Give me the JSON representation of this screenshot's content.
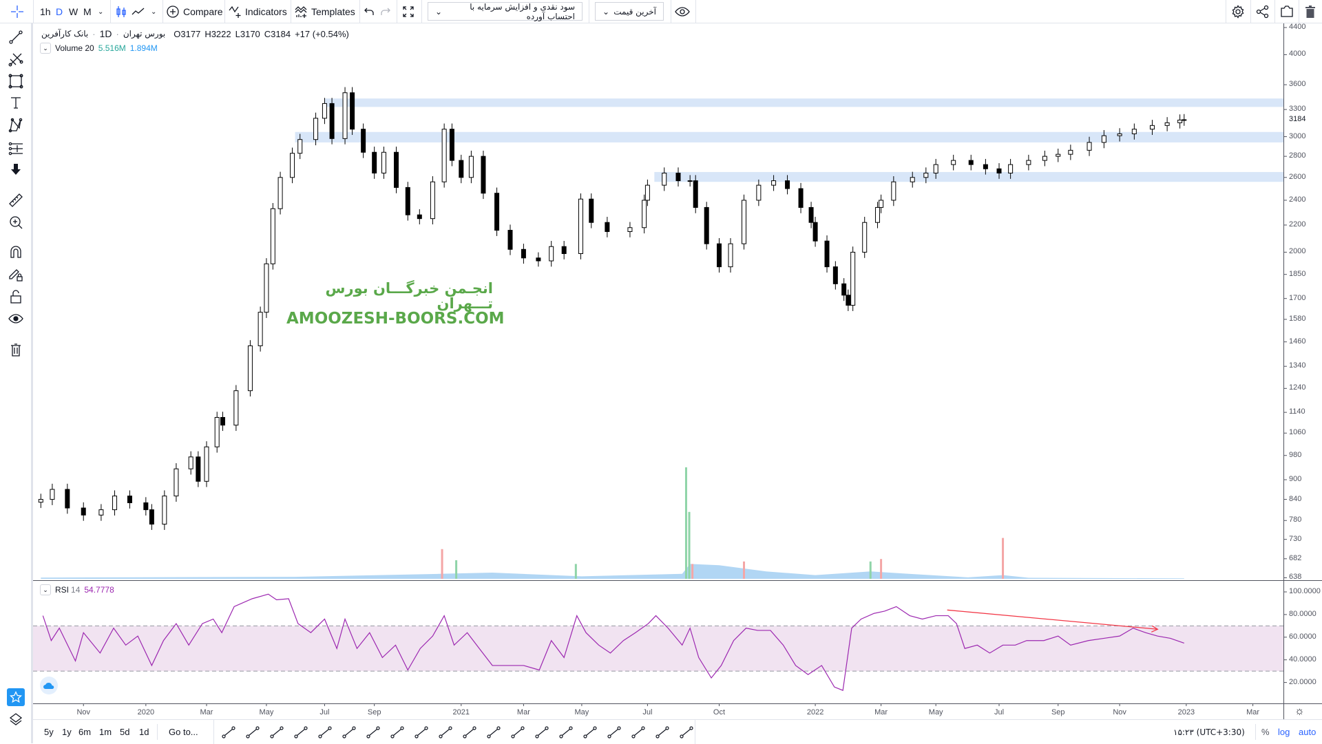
{
  "toolbar": {
    "intervals": [
      {
        "label": "1h",
        "active": false
      },
      {
        "label": "D",
        "active": true
      },
      {
        "label": "W",
        "active": false
      },
      {
        "label": "M",
        "active": false
      }
    ],
    "compare_label": "Compare",
    "indicators_label": "Indicators",
    "templates_label": "Templates",
    "adjustment_dropdown": "سود نقدی و افزایش سرمایه با احتساب آورده",
    "price_type_dropdown": "آخرین قیمت",
    "icons": [
      "crosshair-icon",
      "candles-icon",
      "line-chart-icon",
      "compare-icon",
      "indicators-icon",
      "templates-icon",
      "undo-icon",
      "redo-icon",
      "fullscreen-icon",
      "eye-icon",
      "gear-icon",
      "share-icon",
      "camera-icon",
      "trash-icon"
    ]
  },
  "left_tools": [
    "crosshair",
    "trend-line",
    "pitchfork",
    "rectangle",
    "text",
    "xabcd-pattern",
    "fib-tools",
    "arrow-down",
    "ruler",
    "zoom-in",
    "magnet",
    "lock-drawing",
    "unlock",
    "eye",
    "trash",
    "watchlist-star",
    "layers"
  ],
  "legend": {
    "symbol": "بانک کارآفرین",
    "interval": "1D",
    "exchange": "بورس تهران",
    "open": "O3177",
    "high": "H3222",
    "low": "L3170",
    "close": "C3184",
    "change": "+17 (+0.54%)",
    "volume_label": "Volume 20",
    "volume_value": "5.516M",
    "volume_ma": "1.894M",
    "rsi_label": "RSI",
    "rsi_period": "14",
    "rsi_value": "54.7778"
  },
  "watermark": {
    "line1": "انجـمن خبرگـــان بورس تـــهران",
    "line2": "AMOOZESH-BOORS.COM"
  },
  "colors": {
    "accent": "#2962ff",
    "up_volume": "#8fd4a8",
    "down_volume": "#f4a6a6",
    "volume_ma": "#90c4f0",
    "rsi_line": "#9c27b0",
    "rsi_band": "#f1e3f1",
    "zone": "#d8e6f8",
    "trend": "#f23645",
    "watermark": "#5aa84a"
  },
  "chart_data": [
    {
      "type": "candlestick",
      "scale": "log",
      "ylim": [
        638,
        4400
      ],
      "price_ticks": [
        "4400",
        "4000",
        "3600",
        "3300",
        "3000",
        "2800",
        "2600",
        "2400",
        "2200",
        "2000",
        "1850",
        "1700",
        "1580",
        "1460",
        "1340",
        "1240",
        "1140",
        "1060",
        "980",
        "900",
        "840",
        "780",
        "730",
        "682",
        "638"
      ],
      "last_price": "3184",
      "time_ticks": [
        "Nov",
        "2020",
        "Mar",
        "May",
        "Jul",
        "Sep",
        "2021",
        "Mar",
        "May",
        "Jul",
        "Oct",
        "2022",
        "Mar",
        "May",
        "Jul",
        "Sep",
        "Nov",
        "2023",
        "Mar"
      ],
      "closes": [
        [
          "2019-09-20",
          840
        ],
        [
          "2019-10-01",
          870
        ],
        [
          "2019-10-16",
          815
        ],
        [
          "2019-11-01",
          795
        ],
        [
          "2019-11-18",
          810
        ],
        [
          "2019-12-01",
          850
        ],
        [
          "2019-12-16",
          830
        ],
        [
          "2020-01-01",
          810
        ],
        [
          "2020-01-07",
          770
        ],
        [
          "2020-01-20",
          850
        ],
        [
          "2020-02-01",
          935
        ],
        [
          "2020-02-15",
          975
        ],
        [
          "2020-02-22",
          895
        ],
        [
          "2020-03-01",
          1010
        ],
        [
          "2020-03-12",
          1120
        ],
        [
          "2020-03-18",
          1090
        ],
        [
          "2020-04-01",
          1230
        ],
        [
          "2020-04-15",
          1440
        ],
        [
          "2020-04-25",
          1620
        ],
        [
          "2020-05-01",
          1920
        ],
        [
          "2020-05-08",
          2330
        ],
        [
          "2020-05-16",
          2600
        ],
        [
          "2020-05-29",
          2830
        ],
        [
          "2020-06-06",
          2970
        ],
        [
          "2020-06-22",
          3200
        ],
        [
          "2020-07-01",
          3370
        ],
        [
          "2020-07-10",
          2980
        ],
        [
          "2020-07-26",
          3500
        ],
        [
          "2020-08-04",
          3080
        ],
        [
          "2020-08-18",
          2840
        ],
        [
          "2020-09-01",
          2640
        ],
        [
          "2020-09-14",
          2840
        ],
        [
          "2020-10-01",
          2510
        ],
        [
          "2020-10-18",
          2280
        ],
        [
          "2020-11-04",
          2250
        ],
        [
          "2020-11-22",
          2560
        ],
        [
          "2020-12-08",
          3080
        ],
        [
          "2020-12-19",
          2760
        ],
        [
          "2021-01-01",
          2600
        ],
        [
          "2021-01-11",
          2800
        ],
        [
          "2021-01-23",
          2460
        ],
        [
          "2021-02-05",
          2160
        ],
        [
          "2021-02-17",
          2020
        ],
        [
          "2021-03-01",
          1960
        ],
        [
          "2021-03-17",
          1940
        ],
        [
          "2021-03-31",
          2040
        ],
        [
          "2021-04-13",
          1990
        ],
        [
          "2021-04-30",
          2410
        ],
        [
          "2021-05-10",
          2220
        ],
        [
          "2021-05-25",
          2150
        ],
        [
          "2021-06-15",
          2180
        ],
        [
          "2021-06-28",
          2400
        ],
        [
          "2021-07-01",
          2530
        ],
        [
          "2021-07-23",
          2640
        ],
        [
          "2021-08-10",
          2570
        ],
        [
          "2021-08-25",
          2570
        ],
        [
          "2021-09-01",
          2340
        ],
        [
          "2021-09-15",
          2060
        ],
        [
          "2021-10-01",
          1900
        ],
        [
          "2021-10-12",
          2060
        ],
        [
          "2021-10-25",
          2400
        ],
        [
          "2021-11-08",
          2530
        ],
        [
          "2021-11-22",
          2570
        ],
        [
          "2021-12-05",
          2500
        ],
        [
          "2021-12-18",
          2340
        ],
        [
          "2021-12-28",
          2220
        ],
        [
          "2022-01-01",
          2080
        ],
        [
          "2022-01-12",
          1900
        ],
        [
          "2022-01-20",
          1790
        ],
        [
          "2022-01-28",
          1720
        ],
        [
          "2022-02-01",
          1660
        ],
        [
          "2022-02-05",
          2000
        ],
        [
          "2022-02-15",
          2220
        ],
        [
          "2022-02-26",
          2340
        ],
        [
          "2022-03-01",
          2400
        ],
        [
          "2022-03-15",
          2560
        ],
        [
          "2022-04-05",
          2600
        ],
        [
          "2022-04-20",
          2640
        ],
        [
          "2022-05-01",
          2720
        ],
        [
          "2022-05-18",
          2760
        ],
        [
          "2022-06-04",
          2720
        ],
        [
          "2022-06-18",
          2680
        ],
        [
          "2022-07-01",
          2640
        ],
        [
          "2022-07-13",
          2720
        ],
        [
          "2022-08-01",
          2760
        ],
        [
          "2022-08-18",
          2800
        ],
        [
          "2022-09-01",
          2820
        ],
        [
          "2022-09-13",
          2860
        ],
        [
          "2022-10-01",
          2940
        ],
        [
          "2022-10-16",
          3010
        ],
        [
          "2022-11-01",
          3030
        ],
        [
          "2022-11-14",
          3080
        ],
        [
          "2022-11-30",
          3120
        ],
        [
          "2022-12-14",
          3150
        ],
        [
          "2022-12-26",
          3180
        ],
        [
          "2022-12-30",
          3184
        ]
      ],
      "zones": [
        {
          "from": "2020-07-01",
          "low": 3330,
          "high": 3430
        },
        {
          "from": "2020-06-01",
          "low": 2940,
          "high": 3050
        },
        {
          "from": "2021-07-10",
          "low": 2560,
          "high": 2650
        }
      ]
    },
    {
      "type": "bar",
      "name": "Volume 20",
      "unit": "M",
      "bars": [
        {
          "date": "2020-12-05",
          "value": 120,
          "dir": "down"
        },
        {
          "date": "2020-12-25",
          "value": 75,
          "dir": "up"
        },
        {
          "date": "2021-04-25",
          "value": 60,
          "dir": "up"
        },
        {
          "date": "2021-08-20",
          "value": 450,
          "dir": "up"
        },
        {
          "date": "2021-08-24",
          "value": 270,
          "dir": "up"
        },
        {
          "date": "2021-08-28",
          "value": 60,
          "dir": "down"
        },
        {
          "date": "2021-10-25",
          "value": 70,
          "dir": "down"
        },
        {
          "date": "2022-02-20",
          "value": 70,
          "dir": "up"
        },
        {
          "date": "2022-03-01",
          "value": 80,
          "dir": "down"
        },
        {
          "date": "2022-07-05",
          "value": 165,
          "dir": "down"
        }
      ],
      "ma": [
        [
          "2019-09-20",
          5
        ],
        [
          "2020-06-01",
          8
        ],
        [
          "2020-12-01",
          20
        ],
        [
          "2021-02-01",
          25
        ],
        [
          "2021-05-01",
          10
        ],
        [
          "2021-08-15",
          20
        ],
        [
          "2021-08-25",
          60
        ],
        [
          "2021-10-01",
          55
        ],
        [
          "2021-11-15",
          30
        ],
        [
          "2022-01-01",
          15
        ],
        [
          "2022-02-20",
          30
        ],
        [
          "2022-04-01",
          20
        ],
        [
          "2022-06-01",
          6
        ],
        [
          "2022-07-05",
          15
        ],
        [
          "2022-08-01",
          4
        ],
        [
          "2022-12-30",
          2
        ]
      ]
    },
    {
      "type": "line",
      "name": "RSI 14",
      "ylim": [
        0,
        100
      ],
      "band": [
        30,
        70
      ],
      "ticks": [
        "100.0000",
        "80.0000",
        "60.0000",
        "40.0000",
        "20.0000"
      ],
      "values": [
        [
          "2019-09-22",
          79
        ],
        [
          "2019-09-30",
          57
        ],
        [
          "2019-10-08",
          68
        ],
        [
          "2019-10-24",
          39
        ],
        [
          "2019-11-01",
          64
        ],
        [
          "2019-11-17",
          46
        ],
        [
          "2019-11-30",
          68
        ],
        [
          "2019-12-12",
          53
        ],
        [
          "2019-12-24",
          61
        ],
        [
          "2020-01-07",
          35
        ],
        [
          "2020-01-19",
          57
        ],
        [
          "2020-02-01",
          72
        ],
        [
          "2020-02-13",
          53
        ],
        [
          "2020-02-26",
          72
        ],
        [
          "2020-03-08",
          76
        ],
        [
          "2020-03-17",
          64
        ],
        [
          "2020-03-30",
          87
        ],
        [
          "2020-04-17",
          94
        ],
        [
          "2020-05-03",
          98
        ],
        [
          "2020-05-12",
          93
        ],
        [
          "2020-05-25",
          94
        ],
        [
          "2020-06-04",
          72
        ],
        [
          "2020-06-17",
          64
        ],
        [
          "2020-07-01",
          76
        ],
        [
          "2020-07-16",
          50
        ],
        [
          "2020-07-26",
          76
        ],
        [
          "2020-08-10",
          50
        ],
        [
          "2020-08-26",
          64
        ],
        [
          "2020-09-12",
          42
        ],
        [
          "2020-09-30",
          53
        ],
        [
          "2020-10-18",
          31
        ],
        [
          "2020-11-05",
          50
        ],
        [
          "2020-11-22",
          61
        ],
        [
          "2020-12-08",
          79
        ],
        [
          "2020-12-22",
          53
        ],
        [
          "2021-01-07",
          64
        ],
        [
          "2021-01-19",
          50
        ],
        [
          "2021-02-01",
          35
        ],
        [
          "2021-02-13",
          35
        ],
        [
          "2021-03-01",
          35
        ],
        [
          "2021-03-18",
          31
        ],
        [
          "2021-03-31",
          57
        ],
        [
          "2021-04-13",
          42
        ],
        [
          "2021-04-26",
          79
        ],
        [
          "2021-05-05",
          64
        ],
        [
          "2021-05-17",
          53
        ],
        [
          "2021-05-28",
          46
        ],
        [
          "2021-06-09",
          57
        ],
        [
          "2021-06-20",
          64
        ],
        [
          "2021-07-02",
          72
        ],
        [
          "2021-07-12",
          79
        ],
        [
          "2021-07-28",
          68
        ],
        [
          "2021-08-15",
          53
        ],
        [
          "2021-08-25",
          68
        ],
        [
          "2021-09-05",
          42
        ],
        [
          "2021-09-21",
          24
        ],
        [
          "2021-10-03",
          35
        ],
        [
          "2021-10-15",
          57
        ],
        [
          "2021-10-27",
          68
        ],
        [
          "2021-11-07",
          66
        ],
        [
          "2021-11-19",
          66
        ],
        [
          "2021-12-01",
          53
        ],
        [
          "2021-12-13",
          35
        ],
        [
          "2021-12-25",
          27
        ],
        [
          "2022-01-07",
          35
        ],
        [
          "2022-01-19",
          16
        ],
        [
          "2022-01-27",
          13
        ],
        [
          "2022-02-04",
          68
        ],
        [
          "2022-02-12",
          76
        ],
        [
          "2022-02-23",
          81
        ],
        [
          "2022-03-05",
          83
        ],
        [
          "2022-03-18",
          87
        ],
        [
          "2022-04-02",
          79
        ],
        [
          "2022-04-16",
          76
        ],
        [
          "2022-05-01",
          79
        ],
        [
          "2022-05-13",
          79
        ],
        [
          "2022-05-21",
          72
        ],
        [
          "2022-05-29",
          50
        ],
        [
          "2022-06-10",
          53
        ],
        [
          "2022-06-22",
          46
        ],
        [
          "2022-07-05",
          53
        ],
        [
          "2022-07-18",
          53
        ],
        [
          "2022-07-30",
          57
        ],
        [
          "2022-08-17",
          57
        ],
        [
          "2022-09-01",
          61
        ],
        [
          "2022-09-13",
          53
        ],
        [
          "2022-09-30",
          57
        ],
        [
          "2022-10-16",
          59
        ],
        [
          "2022-11-01",
          61
        ],
        [
          "2022-11-13",
          68
        ],
        [
          "2022-11-24",
          64
        ],
        [
          "2022-12-05",
          61
        ],
        [
          "2022-12-17",
          59
        ],
        [
          "2022-12-30",
          54.78
        ]
      ],
      "trendline": {
        "from": [
          "2022-05-12",
          84
        ],
        "to": [
          "2022-12-05",
          67
        ]
      }
    }
  ],
  "bottom": {
    "ranges": [
      "5y",
      "1y",
      "6m",
      "1m",
      "5d",
      "1d"
    ],
    "goto_label": "Go to...",
    "tools": [
      "horizontal-ray",
      "text-note",
      "parallel-channel",
      "trend-line",
      "rectangle",
      "callout",
      "horizontal-line",
      "cross-line",
      "info-line",
      "arrow-line",
      "ray",
      "long-position",
      "abcd-pattern",
      "abcd-alt-pattern",
      "elliott-wave",
      "price-range",
      "brush",
      "xabcd",
      "date-range",
      "fib-timezone"
    ],
    "clock": "۱۵:۲۳ (UTC+3:30)",
    "percent_label": "%",
    "log_label": "log",
    "auto_label": "auto"
  }
}
